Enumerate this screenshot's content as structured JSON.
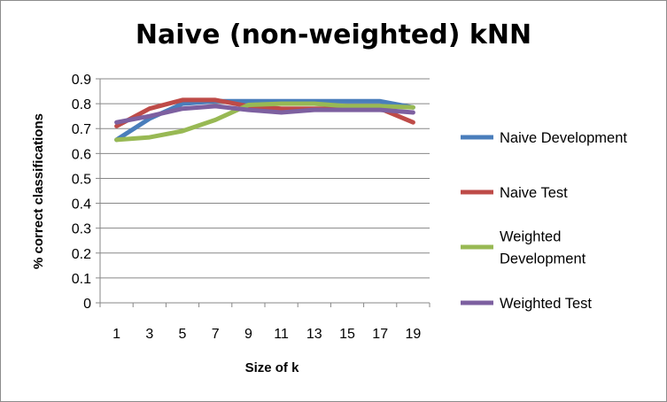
{
  "chart_data": {
    "type": "line",
    "title": "Naive (non-weighted) kNN",
    "xlabel": "Size of k",
    "ylabel": "% correct classifications",
    "categories": [
      "1",
      "3",
      "5",
      "7",
      "9",
      "11",
      "13",
      "15",
      "17",
      "19"
    ],
    "ylim": [
      0,
      0.9
    ],
    "yticks": [
      "0",
      "0.1",
      "0.2",
      "0.3",
      "0.4",
      "0.5",
      "0.6",
      "0.7",
      "0.8",
      "0.9"
    ],
    "grid": true,
    "legend_position": "right",
    "series": [
      {
        "name": "Naive Development",
        "legend_lines": [
          "Naive Development"
        ],
        "color": "#4a7ebb",
        "values": [
          0.655,
          0.74,
          0.8,
          0.81,
          0.81,
          0.81,
          0.81,
          0.81,
          0.81,
          0.785
        ]
      },
      {
        "name": "Naive Test",
        "legend_lines": [
          "Naive Test"
        ],
        "color": "#be4b48",
        "values": [
          0.71,
          0.78,
          0.815,
          0.815,
          0.79,
          0.78,
          0.78,
          0.78,
          0.78,
          0.725
        ]
      },
      {
        "name": "Weighted Development",
        "legend_lines": [
          "Weighted",
          "Development"
        ],
        "color": "#98b954",
        "values": [
          0.655,
          0.665,
          0.69,
          0.735,
          0.795,
          0.8,
          0.8,
          0.79,
          0.79,
          0.785
        ]
      },
      {
        "name": "Weighted Test",
        "legend_lines": [
          "Weighted Test"
        ],
        "color": "#7d60a0",
        "values": [
          0.725,
          0.75,
          0.78,
          0.79,
          0.775,
          0.765,
          0.775,
          0.775,
          0.775,
          0.765
        ]
      }
    ]
  }
}
